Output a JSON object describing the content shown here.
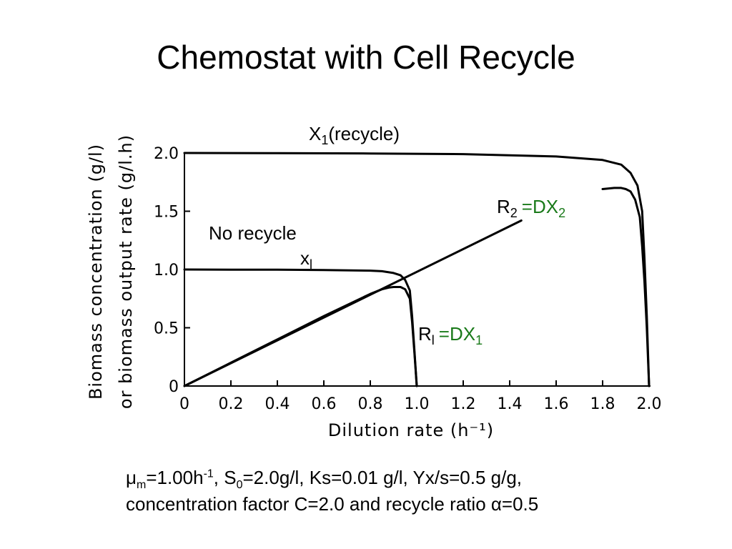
{
  "slide": {
    "title": "Chemostat with Cell Recycle",
    "caption": {
      "mu_symbol": "μ",
      "mu_sub": "m",
      "mu_val": "=1.00h",
      "mu_sup": "-1",
      "s_sym": ", S",
      "s_sub": "0",
      "rest_line1": "=2.0g/l, Ks=0.01 g/l, Yx/s=0.5 g/g,",
      "line2": "concentration factor C=2.0 and recycle ratio α=0.5"
    }
  },
  "chart_data": {
    "type": "line",
    "xlabel": "Dilution rate (h⁻¹)",
    "ylabel_line1": "Biomass concentration (g/l)",
    "ylabel_line2": "or biomass output rate (g/l.h)",
    "xlim": [
      0,
      2.0
    ],
    "ylim": [
      0,
      2.0
    ],
    "x_ticks": [
      "0",
      "0.2",
      "0.4",
      "0.6",
      "0.8",
      "1.0",
      "1.2",
      "1.4",
      "1.6",
      "1.8",
      "2.0"
    ],
    "y_ticks": [
      "0",
      "0.5",
      "1.0",
      "1.5",
      "2.0"
    ],
    "annotations": {
      "x1_recycle": {
        "main": "X",
        "sub": "1",
        "rest": "(recycle)"
      },
      "no_recycle": "No recycle",
      "x1": {
        "main": "x",
        "sub": "l"
      },
      "r2": {
        "main": "R",
        "sub": "2",
        "eq": "=DX",
        "eq_sub": "2"
      },
      "r1": {
        "main": "R",
        "sub": "l",
        "eq": "=DX",
        "eq_sub": "1"
      }
    },
    "series": [
      {
        "key": "x1_no_recycle",
        "x": [
          0,
          0.2,
          0.4,
          0.6,
          0.8,
          0.85,
          0.9,
          0.93,
          0.95,
          0.97,
          0.98,
          0.99,
          1.0
        ],
        "y": [
          1.0,
          0.999,
          0.998,
          0.996,
          0.99,
          0.985,
          0.97,
          0.95,
          0.91,
          0.82,
          0.6,
          0.3,
          0.0
        ]
      },
      {
        "key": "r1_no_recycle",
        "x": [
          0,
          0.2,
          0.4,
          0.6,
          0.8,
          0.85,
          0.88,
          0.9,
          0.93,
          0.95,
          0.97,
          0.98,
          0.99,
          1.0
        ],
        "y": [
          0,
          0.2,
          0.4,
          0.6,
          0.79,
          0.83,
          0.845,
          0.85,
          0.85,
          0.83,
          0.75,
          0.55,
          0.28,
          0.0
        ]
      },
      {
        "key": "x1_recycle",
        "x": [
          0,
          0.4,
          0.8,
          1.2,
          1.6,
          1.8,
          1.88,
          1.92,
          1.95,
          1.97,
          1.98,
          1.99,
          2.0
        ],
        "y": [
          2.0,
          1.998,
          1.996,
          1.99,
          1.97,
          1.94,
          1.9,
          1.83,
          1.72,
          1.5,
          1.1,
          0.6,
          0.0
        ]
      },
      {
        "key": "r2_recycle",
        "x": [
          1.8,
          1.85,
          1.88,
          1.9,
          1.92,
          1.94,
          1.96,
          1.97,
          1.98,
          1.99,
          2.0
        ],
        "y": [
          1.69,
          1.7,
          1.7,
          1.69,
          1.67,
          1.6,
          1.45,
          1.2,
          0.9,
          0.5,
          0.0
        ]
      },
      {
        "key": "dilution_line",
        "x": [
          0,
          1.45
        ],
        "y": [
          0,
          1.42
        ]
      }
    ]
  }
}
